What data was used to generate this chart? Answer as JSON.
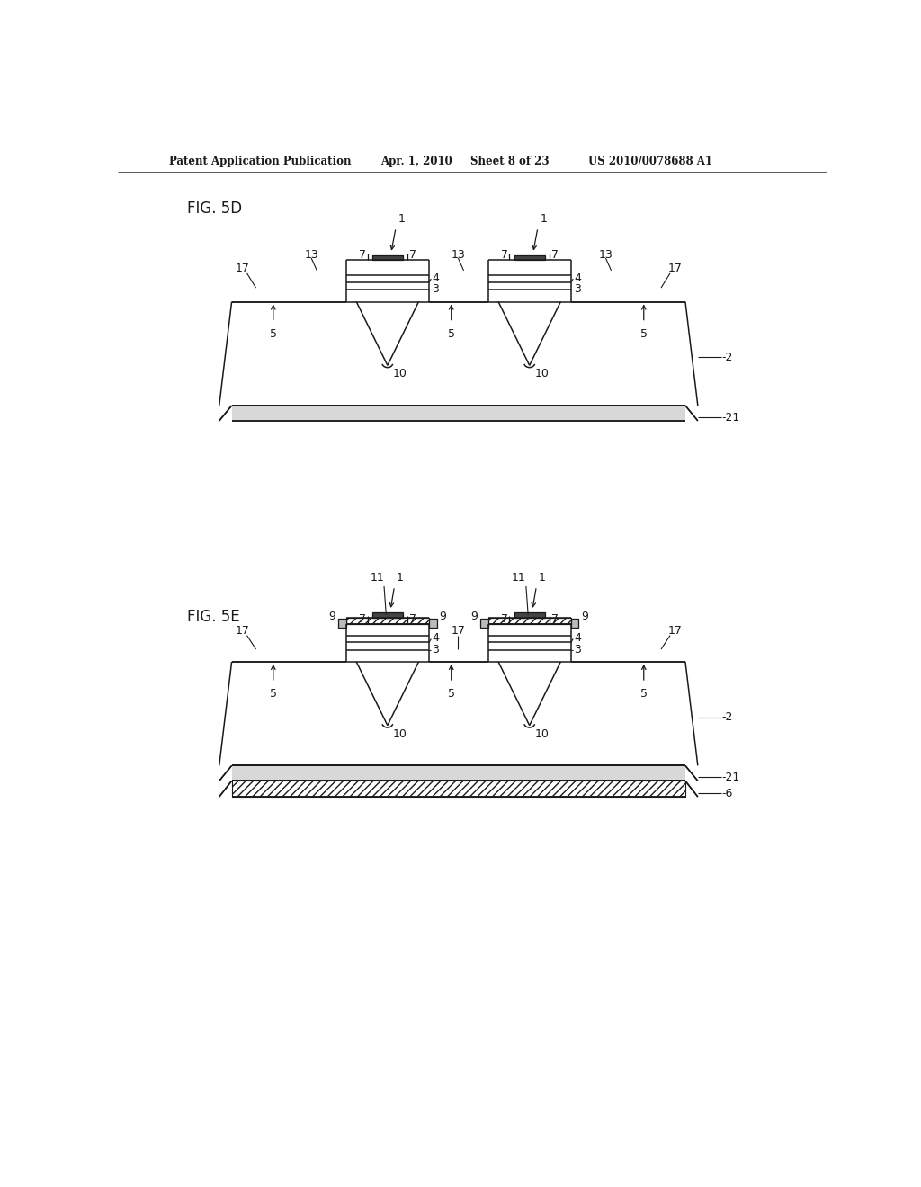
{
  "bg_color": "#ffffff",
  "header_text": "Patent Application Publication",
  "header_date": "Apr. 1, 2010",
  "header_sheet": "Sheet 8 of 23",
  "header_patent": "US 2010/0078688 A1",
  "fig5d_label": "FIG. 5D",
  "fig5e_label": "FIG. 5E",
  "line_color": "#1a1a1a"
}
